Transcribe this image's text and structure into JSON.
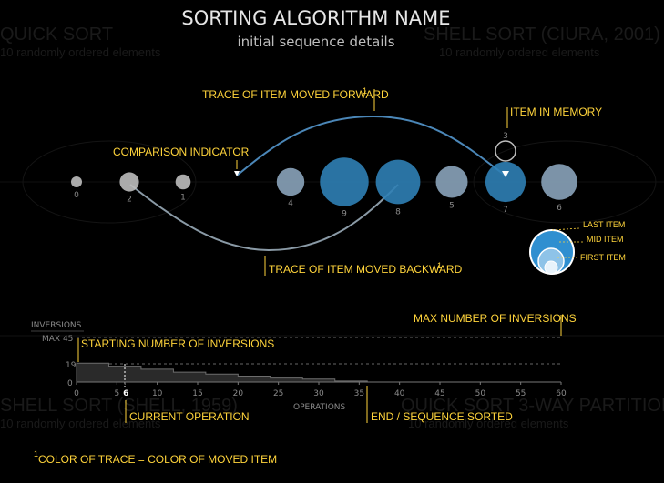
{
  "header": {
    "title": "SORTING ALGORITHM NAME",
    "subtitle": "initial sequence details"
  },
  "background": {
    "labels": [
      "QUICK SORT",
      "10 randomly ordered elements",
      "SHELL SORT (CIURA, 2001)",
      "10 randomly ordered elements",
      "SHELL SORT (SHELL, 1959)",
      "10 randomly ordered elements",
      "QUICK SORT 3-WAY PARTITION",
      "10 randomly ordered elements"
    ]
  },
  "colors": {
    "annotation": "#ffd43b",
    "item_small": "#bdbdbd",
    "item_grey": "#8aa3ba",
    "item_blue": "#2f7fb5",
    "trace_forward": "#4b87b8",
    "trace_backward": "#8a9aa6"
  },
  "annotations": {
    "comparison_indicator": "COMPARISON INDICATOR",
    "trace_forward": "TRACE OF ITEM MOVED FORWARD",
    "trace_forward_sup": "1",
    "item_in_memory": "ITEM IN MEMORY",
    "trace_backward": "TRACE OF ITEM MOVED BACKWARD",
    "trace_backward_sup": "1",
    "last_item": "LAST ITEM",
    "mid_item": "MID ITEM",
    "first_item": "FIRST ITEM",
    "max_inversions": "MAX NUMBER OF INVERSIONS",
    "starting_inversions": "STARTING NUMBER OF INVERSIONS",
    "current_operation": "CURRENT OPERATION",
    "end_sorted": "END / SEQUENCE SORTED",
    "footnote_mark": "1",
    "footnote_text": "COLOR OF TRACE = COLOR OF MOVED ITEM"
  },
  "sequence": {
    "items": [
      {
        "label": "0",
        "value": 0
      },
      {
        "label": "2",
        "value": 2
      },
      {
        "label": "1",
        "value": 1
      },
      {
        "label": "4",
        "value": 4
      },
      {
        "label": "9",
        "value": 9
      },
      {
        "label": "8",
        "value": 8
      },
      {
        "label": "5",
        "value": 5
      },
      {
        "label": "7",
        "value": 7
      },
      {
        "label": "6",
        "value": 6
      }
    ],
    "memory_item": {
      "label": "3",
      "value": 3
    }
  },
  "chart_data": {
    "type": "area",
    "ylabel": "INVERSIONS",
    "xlabel": "OPERATIONS",
    "y_ticks": [
      "0",
      "19",
      "MAX 45"
    ],
    "x_ticks": [
      "0",
      "5",
      "6",
      "10",
      "15",
      "20",
      "25",
      "30",
      "35",
      "40",
      "45",
      "50",
      "55",
      "60"
    ],
    "xlim": [
      0,
      60
    ],
    "ylim": [
      0,
      45
    ],
    "max_inversions": 45,
    "starting_inversions": 19,
    "current_operation": 6,
    "end_operation": 36,
    "x": [
      0,
      4,
      8,
      12,
      16,
      20,
      24,
      28,
      32,
      36
    ],
    "values": [
      19,
      16,
      13,
      10,
      8,
      6,
      4,
      3,
      1,
      0
    ]
  }
}
